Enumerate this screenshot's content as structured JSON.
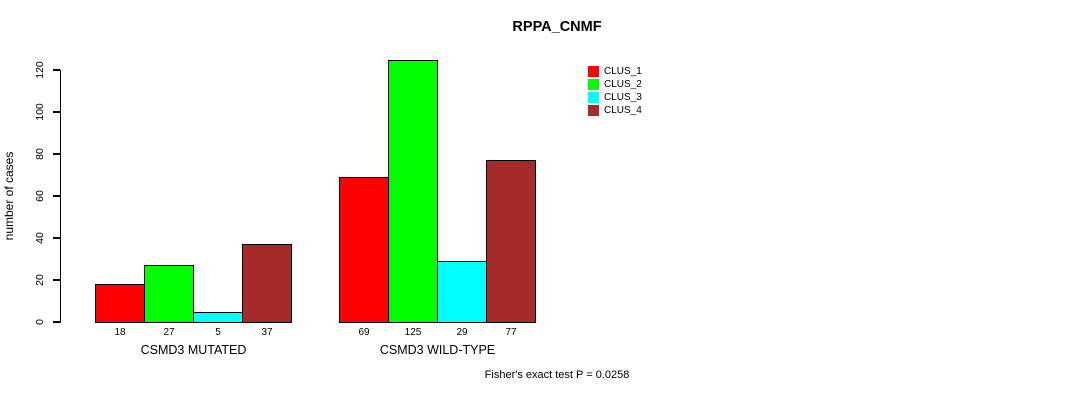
{
  "chart_data": {
    "type": "bar",
    "title": "RPPA_CNMF",
    "xlabel": "",
    "ylabel": "number of cases",
    "categories": [
      "CSMD3 MUTATED",
      "CSMD3 WILD-TYPE"
    ],
    "series": [
      {
        "name": "CLUS_1",
        "color": "#ff0000",
        "values": [
          18,
          69
        ]
      },
      {
        "name": "CLUS_2",
        "color": "#00ff00",
        "values": [
          27,
          125
        ]
      },
      {
        "name": "CLUS_3",
        "color": "#00ffff",
        "values": [
          5,
          29
        ]
      },
      {
        "name": "CLUS_4",
        "color": "#a52a2a",
        "values": [
          37,
          77
        ]
      }
    ],
    "yticks": [
      0,
      20,
      40,
      60,
      80,
      100,
      120
    ],
    "ylim": [
      0,
      125
    ],
    "bar_value_labels": true,
    "grid": false,
    "legend_position": "inside-top-right",
    "annotation": "Fisher's exact test P = 0.0258"
  }
}
